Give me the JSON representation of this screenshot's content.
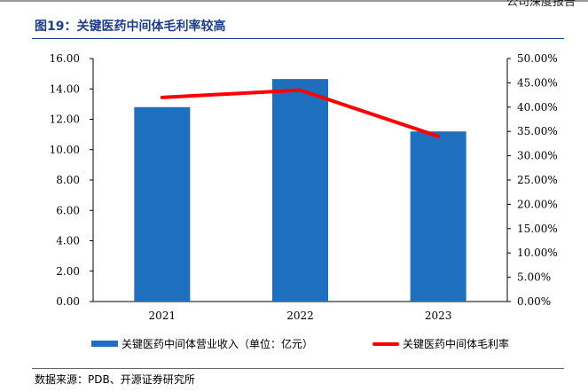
{
  "page": {
    "header_fragment": "公司深度报告",
    "figure_title": "图19：关键医药中间体毛利率较高",
    "source": "数据来源：PDB、开源证券研究所"
  },
  "colors": {
    "bar": "#1f6fbf",
    "line": "#ff0000",
    "title": "#1f3e8a"
  },
  "legend": {
    "bar_label": "关键医药中间体营业收入（单位：亿元）",
    "line_label": "关键医药中间体毛利率"
  },
  "chart_data": {
    "type": "bar",
    "categories": [
      "2021",
      "2022",
      "2023"
    ],
    "series": [
      {
        "name": "关键医药中间体营业收入（单位：亿元）",
        "type": "bar",
        "axis": "left",
        "values": [
          12.8,
          14.65,
          11.2
        ]
      },
      {
        "name": "关键医药中间体毛利率",
        "type": "line",
        "axis": "right",
        "values": [
          42.0,
          43.5,
          34.0
        ]
      }
    ],
    "ylim": [
      0,
      16
    ],
    "y_ticks": [
      "0.00",
      "2.00",
      "4.00",
      "6.00",
      "8.00",
      "10.00",
      "12.00",
      "14.00",
      "16.00"
    ],
    "y2lim": [
      0,
      50
    ],
    "y2_ticks": [
      "0.00%",
      "5.00%",
      "10.00%",
      "15.00%",
      "20.00%",
      "25.00%",
      "30.00%",
      "35.00%",
      "40.00%",
      "45.00%",
      "50.00%"
    ],
    "grid": false,
    "legend_position": "bottom"
  }
}
